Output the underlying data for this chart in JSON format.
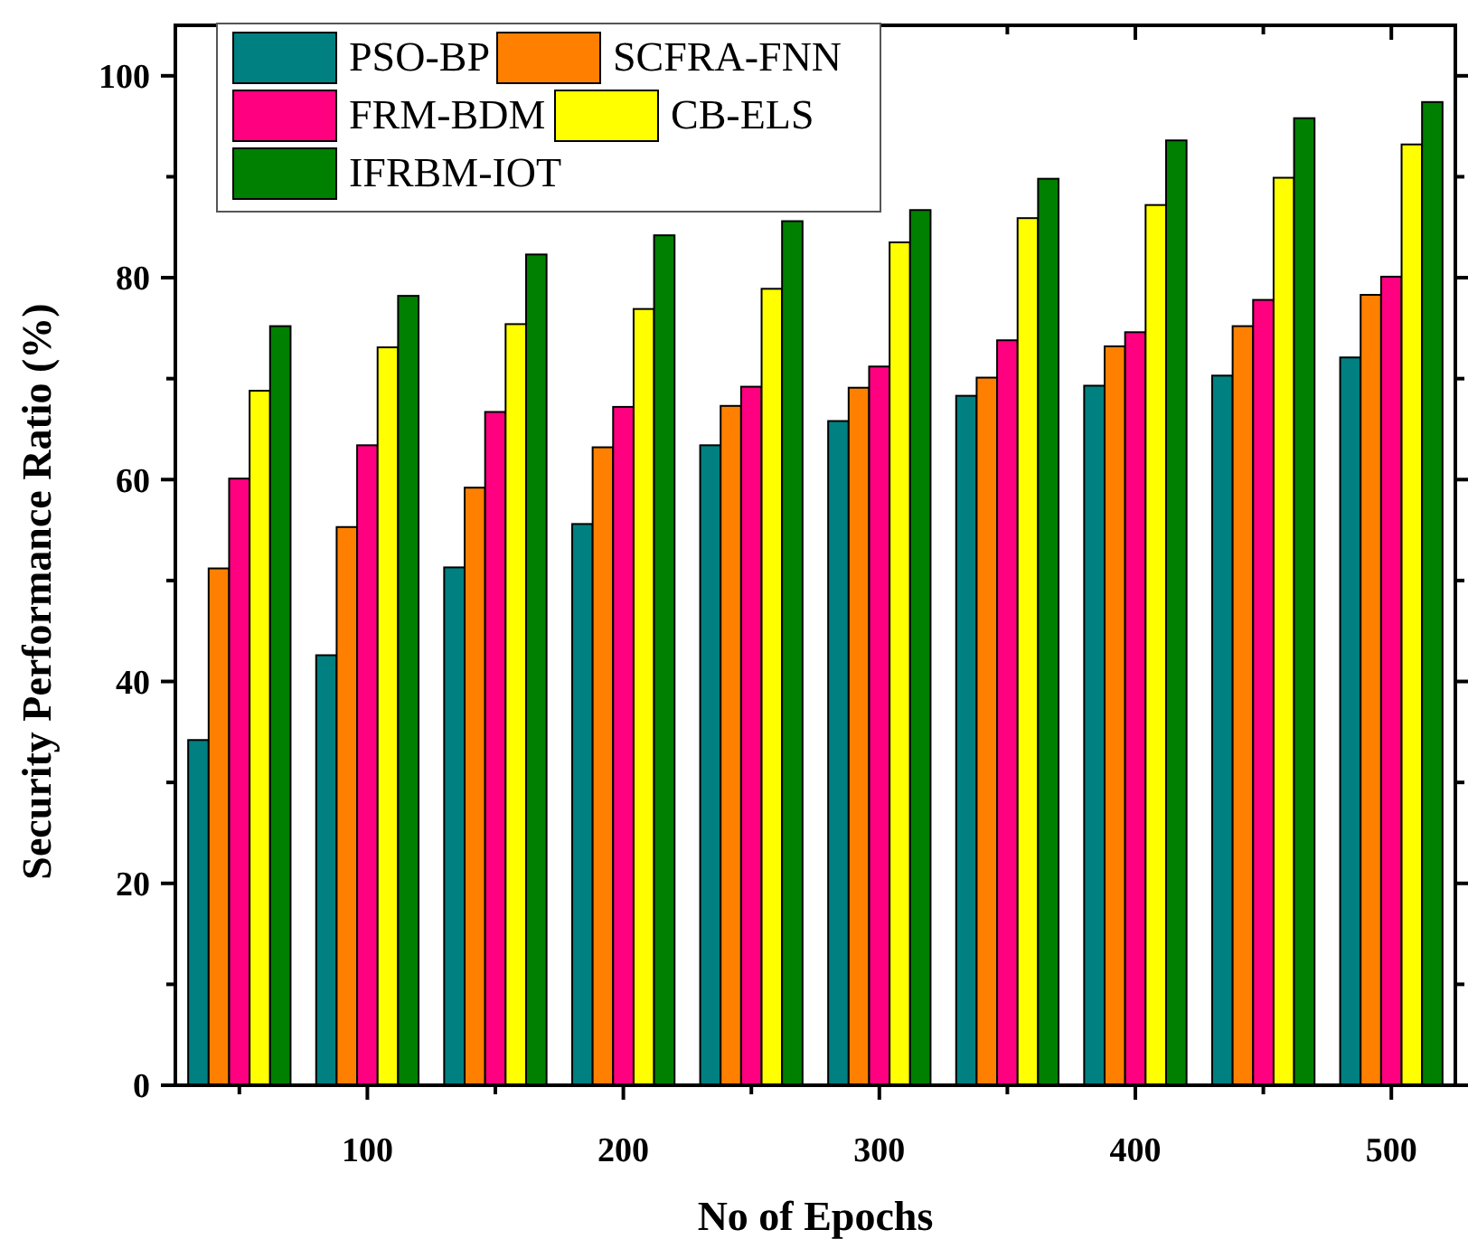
{
  "chart_data": {
    "type": "bar",
    "xlabel": "No of Epochs",
    "ylabel": "Security Performance Ratio (%)",
    "x": [
      50,
      100,
      150,
      200,
      250,
      300,
      350,
      400,
      450,
      500
    ],
    "xlim": [
      25,
      525
    ],
    "xticks": [
      {
        "value": 50,
        "label": null
      },
      100,
      {
        "value": 150,
        "label": null
      },
      200,
      {
        "value": 250,
        "label": null
      },
      300,
      {
        "value": 350,
        "label": null
      },
      400,
      {
        "value": 450,
        "label": null
      },
      500
    ],
    "ylim": [
      0,
      105
    ],
    "yticks": [
      0,
      {
        "value": 10,
        "label": null
      },
      20,
      {
        "value": 30,
        "label": null
      },
      40,
      {
        "value": 50,
        "label": null
      },
      60,
      {
        "value": 70,
        "label": null
      },
      80,
      {
        "value": 90,
        "label": null
      },
      100
    ],
    "legend": "top left",
    "grid": false,
    "series": [
      {
        "name": "PSO-BP",
        "color": "#008080",
        "values": [
          34.2,
          42.6,
          51.3,
          55.6,
          63.4,
          65.8,
          68.3,
          69.3,
          70.3,
          72.1
        ]
      },
      {
        "name": "SCFRA-FNN",
        "color": "#ff8000",
        "values": [
          51.2,
          55.3,
          59.2,
          63.2,
          67.3,
          69.1,
          70.1,
          73.2,
          75.2,
          78.3
        ]
      },
      {
        "name": "FRM-BDM",
        "color": "#ff0080",
        "values": [
          60.1,
          63.4,
          66.7,
          67.2,
          69.2,
          71.2,
          73.8,
          74.6,
          77.8,
          80.1
        ]
      },
      {
        "name": "CB-ELS",
        "color": "#ffff00",
        "values": [
          68.8,
          73.1,
          75.4,
          76.9,
          78.9,
          83.5,
          85.9,
          87.2,
          89.9,
          93.2
        ]
      },
      {
        "name": "IFRBM-IOT",
        "color": "#008000",
        "values": [
          75.2,
          78.2,
          82.3,
          84.2,
          85.6,
          86.7,
          89.8,
          93.6,
          95.8,
          97.4
        ]
      }
    ]
  }
}
